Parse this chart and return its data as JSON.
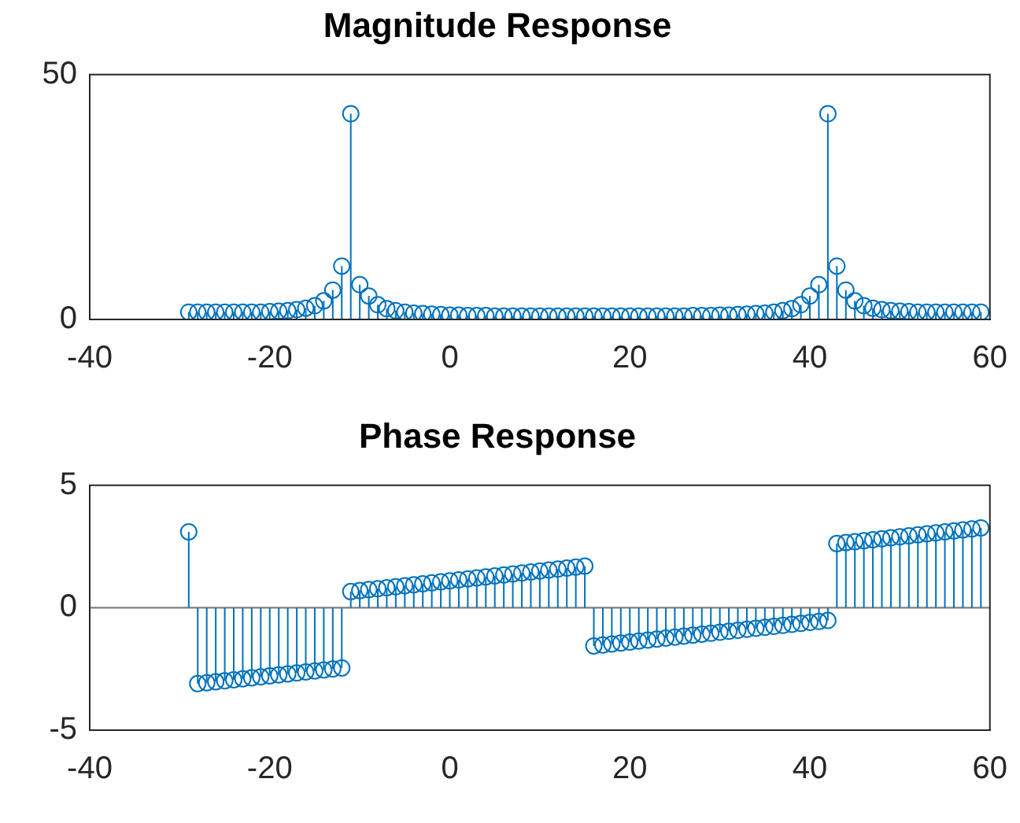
{
  "chart_data": [
    {
      "type": "lollipop",
      "title": "Magnitude Response",
      "color": "#0072bd",
      "marker": "circle",
      "x": [
        -29,
        -28,
        -27,
        -26,
        -25,
        -24,
        -23,
        -22,
        -21,
        -20,
        -19,
        -18,
        -17,
        -16,
        -15,
        -14,
        -13,
        -12,
        -11,
        -10,
        -9,
        -8,
        -7,
        -6,
        -5,
        -4,
        -3,
        -2,
        -1,
        0,
        1,
        2,
        3,
        4,
        5,
        6,
        7,
        8,
        9,
        10,
        11,
        12,
        13,
        14,
        15,
        16,
        17,
        18,
        19,
        20,
        21,
        22,
        23,
        24,
        25,
        26,
        27,
        28,
        29,
        30,
        31,
        32,
        33,
        34,
        35,
        36,
        37,
        38,
        39,
        40,
        41,
        42,
        43,
        44,
        45,
        46,
        47,
        48,
        49,
        50,
        51,
        52,
        53,
        54,
        55,
        56,
        57,
        58,
        59
      ],
      "values": [
        1.5,
        1.5,
        1.5,
        1.5,
        1.5,
        1.5,
        1.5,
        1.5,
        1.5,
        1.6,
        1.7,
        1.8,
        2.0,
        2.3,
        2.8,
        3.8,
        6.0,
        10.9,
        42,
        7.1,
        4.8,
        3.0,
        2.2,
        1.8,
        1.5,
        1.3,
        1.2,
        1.1,
        1.0,
        0.9,
        0.9,
        0.8,
        0.8,
        0.8,
        0.7,
        0.7,
        0.7,
        0.7,
        0.7,
        0.7,
        0.7,
        0.7,
        0.7,
        0.7,
        0.7,
        0.7,
        0.7,
        0.7,
        0.7,
        0.7,
        0.7,
        0.7,
        0.7,
        0.7,
        0.7,
        0.7,
        0.8,
        0.8,
        0.8,
        0.9,
        0.9,
        1.0,
        1.1,
        1.2,
        1.3,
        1.5,
        1.8,
        2.2,
        3.0,
        4.8,
        7.1,
        42,
        10.9,
        6.0,
        3.8,
        2.8,
        2.3,
        2.0,
        1.8,
        1.7,
        1.6,
        1.5,
        1.5,
        1.5,
        1.5,
        1.5,
        1.5,
        1.5,
        1.5
      ],
      "xlim": [
        -40,
        60
      ],
      "xticks": [
        -40,
        -20,
        0,
        20,
        40,
        60
      ],
      "ylim": [
        0,
        50
      ],
      "yticks": [
        0,
        50
      ]
    },
    {
      "type": "lollipop",
      "title": "Phase Response",
      "color": "#0072bd",
      "marker": "circle",
      "x": [
        -29,
        -28,
        -27,
        -26,
        -25,
        -24,
        -23,
        -22,
        -21,
        -20,
        -19,
        -18,
        -17,
        -16,
        -15,
        -14,
        -13,
        -12,
        -11,
        -10,
        -9,
        -8,
        -7,
        -6,
        -5,
        -4,
        -3,
        -2,
        -1,
        0,
        1,
        2,
        3,
        4,
        5,
        6,
        7,
        8,
        9,
        10,
        11,
        12,
        13,
        14,
        15,
        16,
        17,
        18,
        19,
        20,
        21,
        22,
        23,
        24,
        25,
        26,
        27,
        28,
        29,
        30,
        31,
        32,
        33,
        34,
        35,
        36,
        37,
        38,
        39,
        40,
        41,
        42,
        43,
        44,
        45,
        46,
        47,
        48,
        49,
        50,
        51,
        52,
        53,
        54,
        55,
        56,
        57,
        58,
        59
      ],
      "values": [
        3.1,
        -3.1,
        -3.06,
        -3.02,
        -2.98,
        -2.94,
        -2.9,
        -2.86,
        -2.82,
        -2.78,
        -2.74,
        -2.7,
        -2.66,
        -2.62,
        -2.58,
        -2.54,
        -2.5,
        -2.46,
        0.66,
        0.7,
        0.74,
        0.78,
        0.82,
        0.86,
        0.9,
        0.94,
        0.98,
        1.02,
        1.06,
        1.1,
        1.14,
        1.18,
        1.22,
        1.26,
        1.3,
        1.34,
        1.38,
        1.42,
        1.46,
        1.5,
        1.54,
        1.58,
        1.62,
        1.66,
        1.7,
        -1.56,
        -1.52,
        -1.48,
        -1.44,
        -1.4,
        -1.36,
        -1.32,
        -1.28,
        -1.24,
        -1.2,
        -1.16,
        -1.12,
        -1.08,
        -1.04,
        -1.0,
        -0.96,
        -0.92,
        -0.88,
        -0.84,
        -0.8,
        -0.76,
        -0.72,
        -0.68,
        -0.64,
        -0.6,
        -0.56,
        -0.52,
        2.62,
        2.66,
        2.7,
        2.74,
        2.78,
        2.82,
        2.86,
        2.9,
        2.94,
        2.98,
        3.02,
        3.06,
        3.1,
        3.14,
        3.18,
        3.22,
        3.26
      ],
      "xlim": [
        -40,
        60
      ],
      "xticks": [
        -40,
        -20,
        0,
        20,
        40,
        60
      ],
      "ylim": [
        -5,
        5
      ],
      "yticks": [
        -5,
        0,
        5
      ],
      "ref_lines": [
        {
          "axis": "y",
          "value": 0,
          "color": "#808080"
        }
      ]
    }
  ]
}
